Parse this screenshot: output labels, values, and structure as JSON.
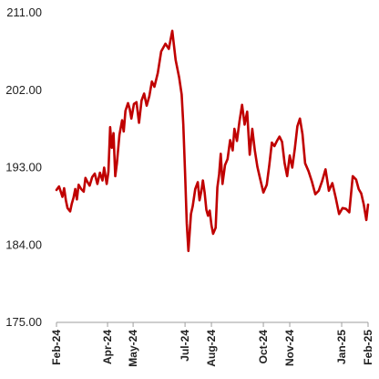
{
  "chart_data": {
    "type": "line",
    "title": "",
    "xlabel": "",
    "ylabel": "",
    "ylim": [
      175.0,
      211.0
    ],
    "y_ticks": [
      175.0,
      184.0,
      193.0,
      202.0,
      211.0
    ],
    "y_tick_labels": [
      "175.00",
      "184.00",
      "193.00",
      "202.00",
      "211.00"
    ],
    "x_tick_labels": [
      "Feb-24",
      "Apr-24",
      "May-24",
      "Jul-24",
      "Aug-24",
      "Oct-24",
      "Nov-24",
      "Jan-25",
      "Feb-25"
    ],
    "x_tick_dates": [
      "2024-02-01",
      "2024-04-01",
      "2024-05-01",
      "2024-07-01",
      "2024-08-01",
      "2024-10-01",
      "2024-11-01",
      "2025-01-01",
      "2025-02-01"
    ],
    "x_range": [
      "2024-02-01",
      "2025-02-01"
    ],
    "grid": false,
    "legend": "none",
    "line_color": "#c00000",
    "series": [
      {
        "x": [
          "2024-02-01",
          "2024-02-04",
          "2024-02-06",
          "2024-02-08",
          "2024-02-10",
          "2024-02-12",
          "2024-02-14",
          "2024-02-17",
          "2024-02-19",
          "2024-02-21",
          "2024-02-23",
          "2024-02-25",
          "2024-02-27",
          "2024-03-01",
          "2024-03-04",
          "2024-03-06",
          "2024-03-08",
          "2024-03-11",
          "2024-03-14",
          "2024-03-17",
          "2024-03-20",
          "2024-03-23",
          "2024-03-26",
          "2024-03-28",
          "2024-03-31",
          "2024-04-02",
          "2024-04-04",
          "2024-04-06",
          "2024-04-08",
          "2024-04-10",
          "2024-04-12",
          "2024-04-15",
          "2024-04-18",
          "2024-04-20",
          "2024-04-22",
          "2024-04-25",
          "2024-04-27",
          "2024-04-29",
          "2024-05-02",
          "2024-05-05",
          "2024-05-08",
          "2024-05-11",
          "2024-05-14",
          "2024-05-17",
          "2024-05-20",
          "2024-05-23",
          "2024-05-26",
          "2024-05-30",
          "2024-06-03",
          "2024-06-08",
          "2024-06-12",
          "2024-06-16",
          "2024-06-20",
          "2024-06-24",
          "2024-06-27",
          "2024-06-29",
          "2024-07-01",
          "2024-07-03",
          "2024-07-05",
          "2024-07-08",
          "2024-07-10",
          "2024-07-13",
          "2024-07-16",
          "2024-07-18",
          "2024-07-20",
          "2024-07-22",
          "2024-07-24",
          "2024-07-26",
          "2024-07-28",
          "2024-07-30",
          "2024-08-01",
          "2024-08-03",
          "2024-08-06",
          "2024-08-08",
          "2024-08-10",
          "2024-08-12",
          "2024-08-14",
          "2024-08-17",
          "2024-08-20",
          "2024-08-23",
          "2024-08-26",
          "2024-08-28",
          "2024-08-31",
          "2024-09-03",
          "2024-09-06",
          "2024-09-09",
          "2024-09-12",
          "2024-09-15",
          "2024-09-18",
          "2024-09-21",
          "2024-09-24",
          "2024-09-27",
          "2024-10-01",
          "2024-10-05",
          "2024-10-08",
          "2024-10-11",
          "2024-10-14",
          "2024-10-17",
          "2024-10-20",
          "2024-10-23",
          "2024-10-26",
          "2024-10-29",
          "2024-11-01",
          "2024-11-04",
          "2024-11-07",
          "2024-11-10",
          "2024-11-13",
          "2024-11-16",
          "2024-11-19",
          "2024-11-23",
          "2024-11-27",
          "2024-12-01",
          "2024-12-05",
          "2024-12-09",
          "2024-12-13",
          "2024-12-17",
          "2024-12-21",
          "2024-12-25",
          "2024-12-29",
          "2025-01-02",
          "2025-01-06",
          "2025-01-10",
          "2025-01-14",
          "2025-01-18",
          "2025-01-21",
          "2025-01-24",
          "2025-01-27",
          "2025-01-30",
          "2025-02-01"
        ],
        "y": [
          190.4,
          190.8,
          190.2,
          189.6,
          190.6,
          189.2,
          188.3,
          187.9,
          188.8,
          189.5,
          190.5,
          189.3,
          191.0,
          190.5,
          190.2,
          191.8,
          191.4,
          190.9,
          191.9,
          192.3,
          191.1,
          192.4,
          191.5,
          193.0,
          191.1,
          192.5,
          197.7,
          195.3,
          197.0,
          192.0,
          193.5,
          196.8,
          198.5,
          197.2,
          199.6,
          200.5,
          199.8,
          198.7,
          200.4,
          200.6,
          198.2,
          200.8,
          201.6,
          200.2,
          201.3,
          203.0,
          202.4,
          204.0,
          206.5,
          207.4,
          206.8,
          208.9,
          205.5,
          203.5,
          201.5,
          198.0,
          192.5,
          186.5,
          183.3,
          187.6,
          188.5,
          190.5,
          191.3,
          189.2,
          190.2,
          191.5,
          190.1,
          188.1,
          187.4,
          188.0,
          186.3,
          185.3,
          186.0,
          190.7,
          192.2,
          194.6,
          191.1,
          193.3,
          194.0,
          196.2,
          195.0,
          197.5,
          196.1,
          198.4,
          200.3,
          198.0,
          199.5,
          194.5,
          197.5,
          195.0,
          193.1,
          191.8,
          190.1,
          191.0,
          193.3,
          195.9,
          195.5,
          196.1,
          196.6,
          196.0,
          193.5,
          192.0,
          194.4,
          193.0,
          195.2,
          197.8,
          198.7,
          196.9,
          193.5,
          192.6,
          191.4,
          189.9,
          190.3,
          191.4,
          192.8,
          190.3,
          191.2,
          189.5,
          187.6,
          188.3,
          188.2,
          187.8,
          192.0,
          191.6,
          190.5,
          190.0,
          188.7,
          186.9,
          188.7
        ]
      }
    ]
  }
}
